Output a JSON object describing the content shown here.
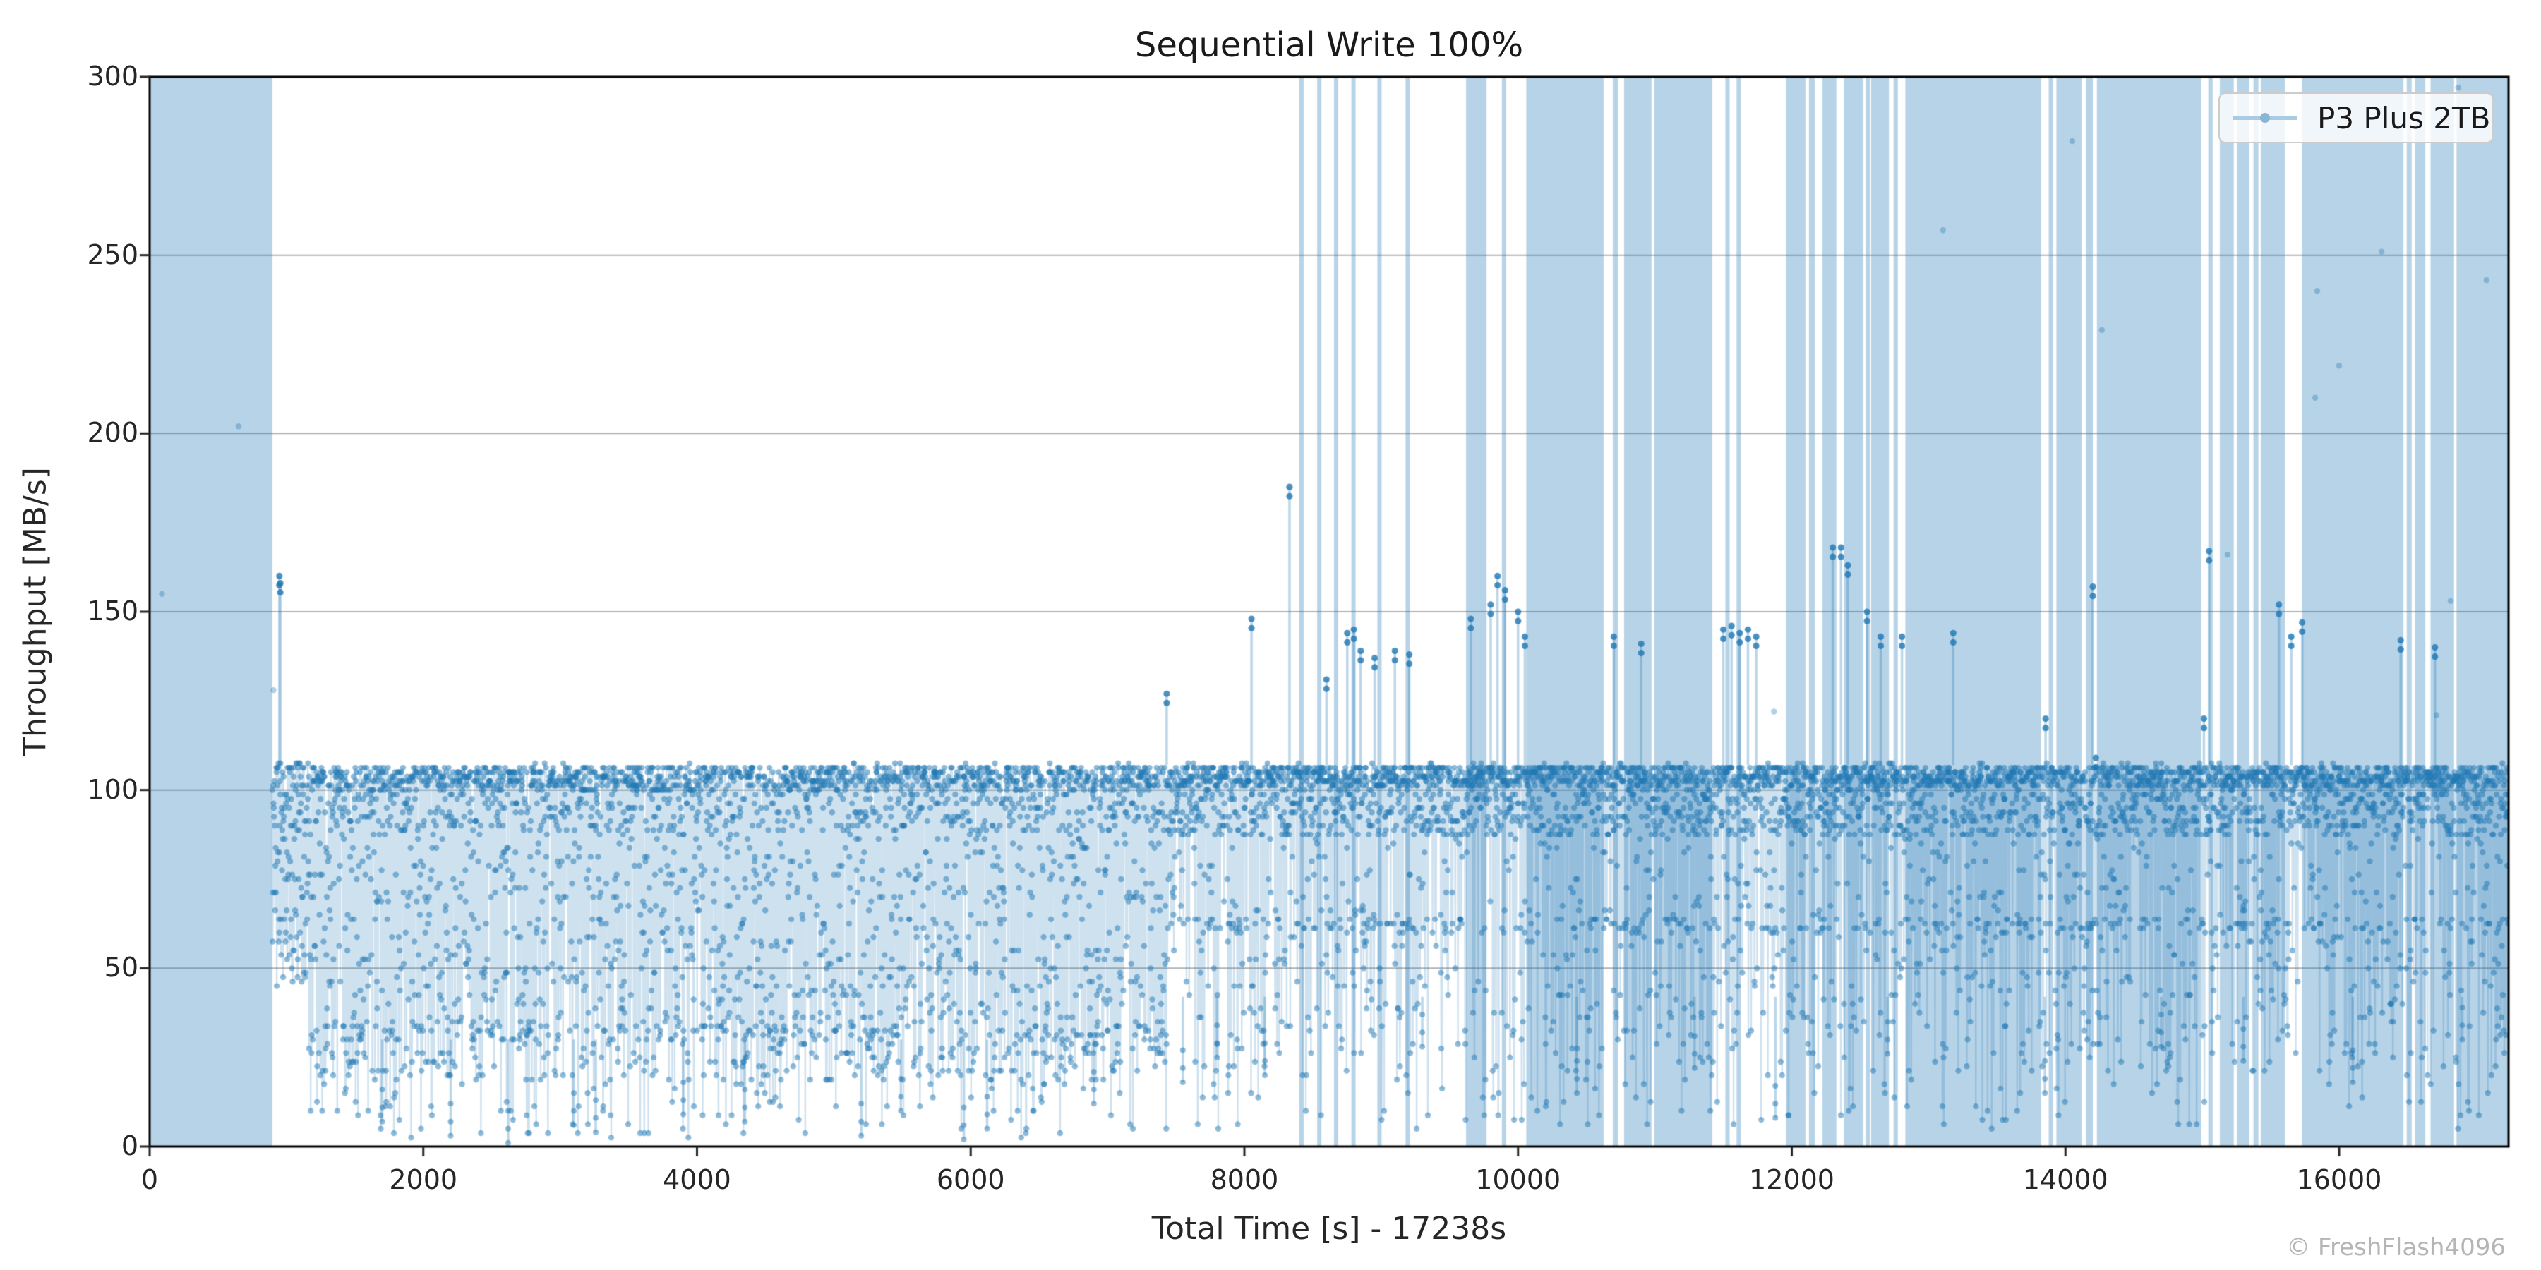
{
  "title": "Sequential Write 100%",
  "watermark": "© FreshFlash4096",
  "legend": {
    "label": "P3 Plus 2TB"
  },
  "axes": {
    "xlabel": "Total Time [s] - 17238s",
    "ylabel": "Throughput [MB/s]"
  },
  "colors": {
    "series": "#1f77b4",
    "band_fill": "rgba(31,119,180,0.32)",
    "marker": "rgba(31,119,180,0.5)",
    "marker_dark": "rgba(31,119,180,0.8)",
    "marker_faint": "rgba(31,119,180,0.35)",
    "line": "rgba(31,119,180,0.22)",
    "stem": "rgba(31,119,180,0.3)",
    "grid": "#b0b0b0",
    "spine": "#000000",
    "text": "#262626",
    "watermark": "#b5b5b5",
    "legend_border": "#cccccc",
    "legend_bg": "rgba(255,255,255,0.8)",
    "legend_line": "#a9cce3",
    "legend_dot": "#8ab6d6"
  },
  "chart_data": {
    "type": "scatter",
    "title": "Sequential Write 100%",
    "xlabel": "Total Time [s] - 17238s",
    "ylabel": "Throughput [MB/s]",
    "xlim": [
      0,
      17238
    ],
    "ylim": [
      0,
      300
    ],
    "xticks": [
      0,
      2000,
      4000,
      6000,
      8000,
      10000,
      12000,
      14000,
      16000
    ],
    "yticks": [
      0,
      50,
      100,
      150,
      200,
      250,
      300
    ],
    "grid": "horizontal",
    "legend_position": "upper right",
    "total_time_s": 17238,
    "series": [
      {
        "name": "P3 Plus 2TB",
        "sample_interval_s": 2,
        "initial_cache_burst_s": [
          0,
          897
        ],
        "phases": [
          {
            "start_s": 897,
            "end_s": 1150,
            "min": 45,
            "max": 107,
            "top_cluster": [
              85,
              107
            ]
          },
          {
            "start_s": 1150,
            "end_s": 7430,
            "min": 18,
            "max": 107,
            "top_cluster": [
              88,
              107
            ],
            "mid_band": [
              30,
              88
            ],
            "low_cluster": [
              18,
              35
            ],
            "deep_floor": 2,
            "approx_mean": 64
          },
          {
            "start_s": 7430,
            "end_s": 17238,
            "min": 20,
            "max": 107,
            "top_cluster": [
              87,
              107
            ],
            "mid_band": [
              42,
              87
            ],
            "dense_line": 62,
            "deep_floor": 5,
            "approx_mean": 83
          }
        ],
        "burst_bands_s": [
          [
            8402,
            8428
          ],
          [
            8532,
            8558
          ],
          [
            8655,
            8680
          ],
          [
            8782,
            8808
          ],
          [
            8972,
            8998
          ],
          [
            9178,
            9204
          ],
          [
            9620,
            9770
          ],
          [
            9882,
            9908
          ],
          [
            10060,
            10625
          ],
          [
            10692,
            10730
          ],
          [
            10775,
            10975
          ],
          [
            10995,
            11420
          ],
          [
            11515,
            11540
          ],
          [
            11597,
            11622
          ],
          [
            11958,
            12100
          ],
          [
            12126,
            12168
          ],
          [
            12224,
            12326
          ],
          [
            12380,
            12522
          ],
          [
            12540,
            12562
          ],
          [
            12580,
            12710
          ],
          [
            12744,
            12772
          ],
          [
            12830,
            13822
          ],
          [
            13878,
            13906
          ],
          [
            13934,
            14118
          ],
          [
            14150,
            14200
          ],
          [
            14230,
            14992
          ],
          [
            15044,
            15076
          ],
          [
            15128,
            15230
          ],
          [
            15254,
            15344
          ],
          [
            15374,
            15410
          ],
          [
            15428,
            15604
          ],
          [
            15728,
            16470
          ],
          [
            16494,
            16530
          ],
          [
            16554,
            16630
          ],
          [
            16668,
            16840
          ],
          [
            16858,
            17238
          ]
        ],
        "outliers": [
          [
            948,
            160
          ],
          [
            955,
            158
          ],
          [
            7432,
            127
          ],
          [
            8052,
            148
          ],
          [
            8330,
            185
          ],
          [
            8600,
            131
          ],
          [
            8752,
            144
          ],
          [
            8800,
            145
          ],
          [
            8850,
            139
          ],
          [
            8952,
            137
          ],
          [
            9100,
            139
          ],
          [
            9205,
            138
          ],
          [
            9655,
            148
          ],
          [
            9800,
            152
          ],
          [
            9850,
            160
          ],
          [
            9905,
            156
          ],
          [
            10000,
            150
          ],
          [
            10050,
            143
          ],
          [
            10700,
            143
          ],
          [
            10900,
            141
          ],
          [
            11500,
            145
          ],
          [
            11560,
            146
          ],
          [
            11620,
            144
          ],
          [
            11680,
            145
          ],
          [
            11740,
            143
          ],
          [
            12300,
            168
          ],
          [
            12360,
            168
          ],
          [
            12410,
            163
          ],
          [
            12550,
            150
          ],
          [
            12650,
            143
          ],
          [
            12805,
            143
          ],
          [
            13180,
            144
          ],
          [
            13855,
            120
          ],
          [
            14200,
            157
          ],
          [
            14222,
            109
          ],
          [
            15012,
            120
          ],
          [
            15050,
            167
          ],
          [
            15560,
            152
          ],
          [
            15650,
            143
          ],
          [
            15730,
            147
          ],
          [
            16450,
            142
          ],
          [
            16700,
            140
          ]
        ],
        "faint_outliers": [
          [
            90,
            155
          ],
          [
            650,
            202
          ],
          [
            905,
            128
          ],
          [
            11870,
            122
          ],
          [
            13105,
            257
          ],
          [
            14050,
            282
          ],
          [
            14266,
            229
          ],
          [
            15185,
            166
          ],
          [
            15825,
            210
          ],
          [
            15840,
            240
          ],
          [
            16000,
            219
          ],
          [
            16310,
            251
          ],
          [
            16712,
            121
          ],
          [
            16815,
            153
          ],
          [
            16870,
            297
          ],
          [
            17077,
            243
          ]
        ],
        "deep_spikes": [
          [
            1700,
            7
          ],
          [
            2200,
            3
          ],
          [
            2620,
            1
          ],
          [
            3100,
            6
          ],
          [
            3260,
            4
          ],
          [
            3900,
            9
          ],
          [
            4350,
            7
          ],
          [
            5200,
            3
          ],
          [
            5490,
            10
          ],
          [
            5950,
            2
          ],
          [
            6120,
            5
          ],
          [
            6900,
            12
          ],
          [
            7550,
            18
          ],
          [
            7800,
            25
          ],
          [
            8150,
            20
          ],
          [
            9300,
            28
          ],
          [
            10430,
            15
          ],
          [
            11290,
            22
          ],
          [
            11880,
            8
          ],
          [
            12700,
            26
          ],
          [
            13850,
            15
          ],
          [
            14700,
            28
          ],
          [
            15300,
            24
          ],
          [
            16100,
            18
          ],
          [
            16900,
            30
          ]
        ]
      }
    ]
  }
}
